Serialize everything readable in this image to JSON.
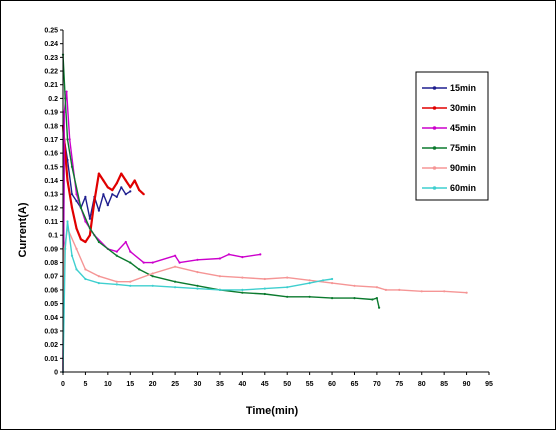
{
  "chart_data": {
    "type": "line",
    "xlabel": "Time(min)",
    "ylabel": "Current(A)",
    "xlim": [
      0,
      95
    ],
    "ylim": [
      0,
      0.25
    ],
    "x_ticks": [
      "0",
      "5",
      "10",
      "15",
      "20",
      "25",
      "30",
      "35",
      "40",
      "45",
      "50",
      "55",
      "60",
      "65",
      "70",
      "75",
      "80",
      "85",
      "90",
      "95"
    ],
    "y_ticks": [
      "0",
      "0.01",
      "0.02",
      "0.03",
      "0.04",
      "0.05",
      "0.06",
      "0.07",
      "0.08",
      "0.09",
      "0.1",
      "0.11",
      "0.12",
      "0.13",
      "0.14",
      "0.15",
      "0.16",
      "0.17",
      "0.18",
      "0.19",
      "0.2",
      "0.21",
      "0.22",
      "0.23",
      "0.24",
      "0.25"
    ],
    "grid": false,
    "legend_position": "right",
    "series": [
      {
        "name": "15min",
        "color": "#1f1f8f",
        "points": [
          [
            0,
            0
          ],
          [
            0.3,
            0.17
          ],
          [
            1,
            0.155
          ],
          [
            2,
            0.13
          ],
          [
            3,
            0.125
          ],
          [
            4,
            0.12
          ],
          [
            5,
            0.128
          ],
          [
            6,
            0.112
          ],
          [
            7,
            0.128
          ],
          [
            8,
            0.118
          ],
          [
            9,
            0.13
          ],
          [
            10,
            0.122
          ],
          [
            11,
            0.13
          ],
          [
            12,
            0.128
          ],
          [
            13,
            0.135
          ],
          [
            14,
            0.13
          ],
          [
            15,
            0.132
          ]
        ]
      },
      {
        "name": "30min",
        "color": "#e00000",
        "points": [
          [
            0,
            0.18
          ],
          [
            1,
            0.14
          ],
          [
            2,
            0.12
          ],
          [
            3,
            0.105
          ],
          [
            4,
            0.097
          ],
          [
            5,
            0.095
          ],
          [
            6,
            0.1
          ],
          [
            7,
            0.125
          ],
          [
            8,
            0.145
          ],
          [
            9,
            0.14
          ],
          [
            10,
            0.135
          ],
          [
            11,
            0.133
          ],
          [
            12,
            0.138
          ],
          [
            13,
            0.145
          ],
          [
            14,
            0.14
          ],
          [
            15,
            0.135
          ],
          [
            16,
            0.14
          ],
          [
            17,
            0.133
          ],
          [
            18,
            0.13
          ]
        ]
      },
      {
        "name": "45min",
        "color": "#cc00cc",
        "points": [
          [
            0,
            0
          ],
          [
            0.3,
            0.19
          ],
          [
            0.8,
            0.205
          ],
          [
            1.5,
            0.17
          ],
          [
            3,
            0.13
          ],
          [
            5,
            0.11
          ],
          [
            7,
            0.1
          ],
          [
            10,
            0.09
          ],
          [
            12,
            0.088
          ],
          [
            14,
            0.095
          ],
          [
            15,
            0.088
          ],
          [
            18,
            0.08
          ],
          [
            20,
            0.08
          ],
          [
            25,
            0.085
          ],
          [
            26,
            0.08
          ],
          [
            30,
            0.082
          ],
          [
            35,
            0.083
          ],
          [
            37,
            0.086
          ],
          [
            40,
            0.084
          ],
          [
            44,
            0.086
          ]
        ]
      },
      {
        "name": "75min",
        "color": "#0b7a2e",
        "points": [
          [
            0,
            0.232
          ],
          [
            0.5,
            0.2
          ],
          [
            1,
            0.17
          ],
          [
            2,
            0.15
          ],
          [
            4,
            0.12
          ],
          [
            6,
            0.105
          ],
          [
            8,
            0.095
          ],
          [
            12,
            0.085
          ],
          [
            15,
            0.08
          ],
          [
            17,
            0.075
          ],
          [
            20,
            0.07
          ],
          [
            25,
            0.066
          ],
          [
            30,
            0.063
          ],
          [
            35,
            0.06
          ],
          [
            40,
            0.058
          ],
          [
            45,
            0.057
          ],
          [
            50,
            0.055
          ],
          [
            55,
            0.055
          ],
          [
            60,
            0.054
          ],
          [
            65,
            0.054
          ],
          [
            69,
            0.053
          ],
          [
            70,
            0.054
          ],
          [
            70.5,
            0.047
          ]
        ]
      },
      {
        "name": "90min",
        "color": "#f59595",
        "points": [
          [
            0,
            0
          ],
          [
            0.3,
            0.09
          ],
          [
            1,
            0.105
          ],
          [
            3,
            0.09
          ],
          [
            5,
            0.075
          ],
          [
            8,
            0.07
          ],
          [
            12,
            0.066
          ],
          [
            15,
            0.066
          ],
          [
            20,
            0.072
          ],
          [
            25,
            0.077
          ],
          [
            30,
            0.073
          ],
          [
            35,
            0.07
          ],
          [
            40,
            0.069
          ],
          [
            45,
            0.068
          ],
          [
            50,
            0.069
          ],
          [
            55,
            0.067
          ],
          [
            60,
            0.065
          ],
          [
            65,
            0.063
          ],
          [
            70,
            0.062
          ],
          [
            72,
            0.06
          ],
          [
            75,
            0.06
          ],
          [
            80,
            0.059
          ],
          [
            85,
            0.059
          ],
          [
            90,
            0.058
          ]
        ]
      },
      {
        "name": "60min",
        "color": "#3fcfcf",
        "points": [
          [
            0,
            0
          ],
          [
            0.5,
            0.09
          ],
          [
            1,
            0.11
          ],
          [
            2,
            0.085
          ],
          [
            3,
            0.075
          ],
          [
            5,
            0.068
          ],
          [
            8,
            0.065
          ],
          [
            12,
            0.064
          ],
          [
            15,
            0.063
          ],
          [
            20,
            0.063
          ],
          [
            25,
            0.062
          ],
          [
            30,
            0.061
          ],
          [
            35,
            0.06
          ],
          [
            40,
            0.06
          ],
          [
            45,
            0.061
          ],
          [
            50,
            0.062
          ],
          [
            55,
            0.065
          ],
          [
            58,
            0.067
          ],
          [
            60,
            0.068
          ]
        ]
      }
    ]
  }
}
